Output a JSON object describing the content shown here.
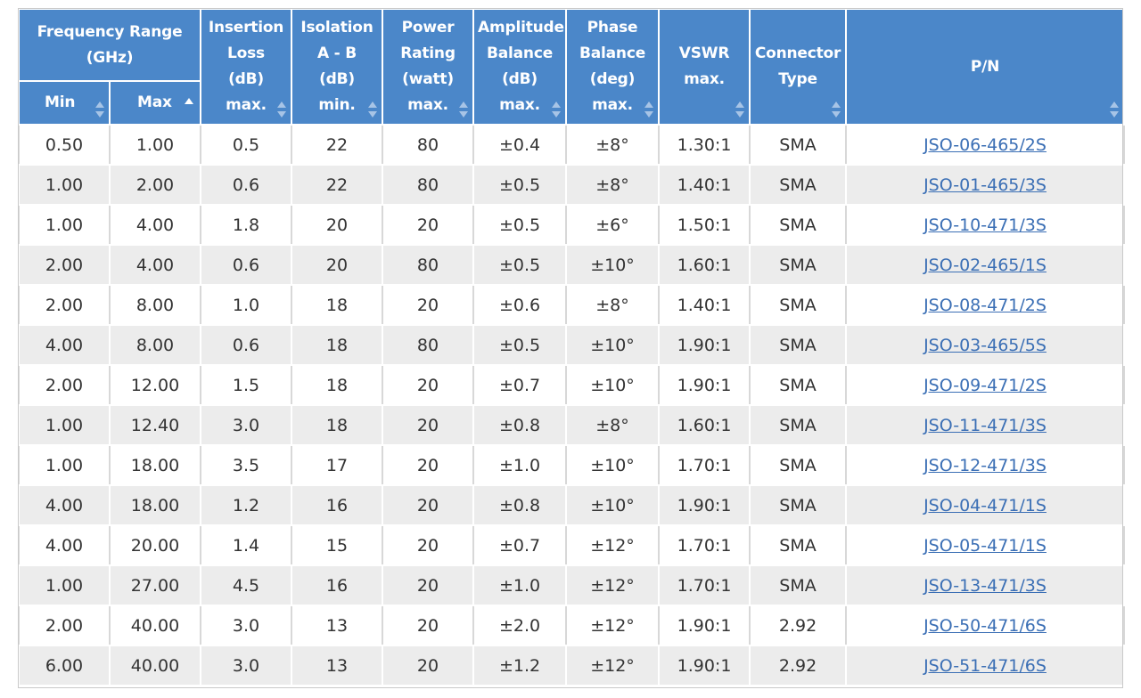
{
  "header": {
    "frequency_range": [
      "Frequency Range",
      "(GHz)"
    ],
    "min": "Min",
    "max": "Max",
    "insertion_loss": [
      "Insertion",
      "Loss",
      "(dB)",
      "max."
    ],
    "isolation": [
      "Isolation",
      "A - B",
      "(dB)",
      "min."
    ],
    "power_rating": [
      "Power",
      "Rating",
      "(watt)",
      "max."
    ],
    "amplitude_balance": [
      "Amplitude",
      "Balance",
      "(dB)",
      "max."
    ],
    "phase_balance": [
      "Phase",
      "Balance",
      "(deg)",
      "max."
    ],
    "vswr": [
      "VSWR",
      "max."
    ],
    "connector_type": [
      "Connector",
      "Type"
    ],
    "pn": "P/N"
  },
  "sort": {
    "column": "Max",
    "direction": "ascending"
  },
  "colors": {
    "header_bg": "#4b87c9",
    "header_text": "#ffffff",
    "stripe": "#ececec",
    "link": "#3b6fb5"
  },
  "rows": [
    {
      "min": "0.50",
      "max": "1.00",
      "il": "0.5",
      "iso": "22",
      "pwr": "80",
      "amp": "±0.4",
      "phase": "±8°",
      "vswr": "1.30:1",
      "conn": "SMA",
      "pn": "JSO-06-465/2S"
    },
    {
      "min": "1.00",
      "max": "2.00",
      "il": "0.6",
      "iso": "22",
      "pwr": "80",
      "amp": "±0.5",
      "phase": "±8°",
      "vswr": "1.40:1",
      "conn": "SMA",
      "pn": "JSO-01-465/3S"
    },
    {
      "min": "1.00",
      "max": "4.00",
      "il": "1.8",
      "iso": "20",
      "pwr": "20",
      "amp": "±0.5",
      "phase": "±6°",
      "vswr": "1.50:1",
      "conn": "SMA",
      "pn": "JSO-10-471/3S"
    },
    {
      "min": "2.00",
      "max": "4.00",
      "il": "0.6",
      "iso": "20",
      "pwr": "80",
      "amp": "±0.5",
      "phase": "±10°",
      "vswr": "1.60:1",
      "conn": "SMA",
      "pn": "JSO-02-465/1S"
    },
    {
      "min": "2.00",
      "max": "8.00",
      "il": "1.0",
      "iso": "18",
      "pwr": "20",
      "amp": "±0.6",
      "phase": "±8°",
      "vswr": "1.40:1",
      "conn": "SMA",
      "pn": "JSO-08-471/2S"
    },
    {
      "min": "4.00",
      "max": "8.00",
      "il": "0.6",
      "iso": "18",
      "pwr": "80",
      "amp": "±0.5",
      "phase": "±10°",
      "vswr": "1.90:1",
      "conn": "SMA",
      "pn": "JSO-03-465/5S"
    },
    {
      "min": "2.00",
      "max": "12.00",
      "il": "1.5",
      "iso": "18",
      "pwr": "20",
      "amp": "±0.7",
      "phase": "±10°",
      "vswr": "1.90:1",
      "conn": "SMA",
      "pn": "JSO-09-471/2S"
    },
    {
      "min": "1.00",
      "max": "12.40",
      "il": "3.0",
      "iso": "18",
      "pwr": "20",
      "amp": "±0.8",
      "phase": "±8°",
      "vswr": "1.60:1",
      "conn": "SMA",
      "pn": "JSO-11-471/3S"
    },
    {
      "min": "1.00",
      "max": "18.00",
      "il": "3.5",
      "iso": "17",
      "pwr": "20",
      "amp": "±1.0",
      "phase": "±10°",
      "vswr": "1.70:1",
      "conn": "SMA",
      "pn": "JSO-12-471/3S"
    },
    {
      "min": "4.00",
      "max": "18.00",
      "il": "1.2",
      "iso": "16",
      "pwr": "20",
      "amp": "±0.8",
      "phase": "±10°",
      "vswr": "1.90:1",
      "conn": "SMA",
      "pn": "JSO-04-471/1S"
    },
    {
      "min": "4.00",
      "max": "20.00",
      "il": "1.4",
      "iso": "15",
      "pwr": "20",
      "amp": "±0.7",
      "phase": "±12°",
      "vswr": "1.70:1",
      "conn": "SMA",
      "pn": "JSO-05-471/1S"
    },
    {
      "min": "1.00",
      "max": "27.00",
      "il": "4.5",
      "iso": "16",
      "pwr": "20",
      "amp": "±1.0",
      "phase": "±12°",
      "vswr": "1.70:1",
      "conn": "SMA",
      "pn": "JSO-13-471/3S"
    },
    {
      "min": "2.00",
      "max": "40.00",
      "il": "3.0",
      "iso": "13",
      "pwr": "20",
      "amp": "±2.0",
      "phase": "±12°",
      "vswr": "1.90:1",
      "conn": "2.92",
      "pn": "JSO-50-471/6S"
    },
    {
      "min": "6.00",
      "max": "40.00",
      "il": "3.0",
      "iso": "13",
      "pwr": "20",
      "amp": "±1.2",
      "phase": "±12°",
      "vswr": "1.90:1",
      "conn": "2.92",
      "pn": "JSO-51-471/6S"
    }
  ]
}
